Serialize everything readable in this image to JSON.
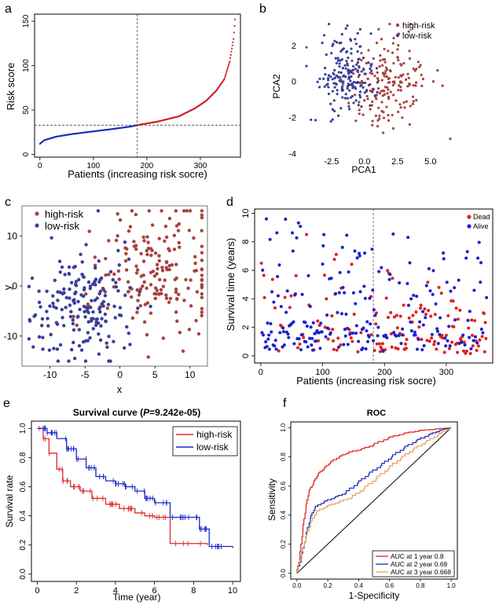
{
  "figure": {
    "panel_labels": [
      "a",
      "b",
      "c",
      "d",
      "e",
      "f"
    ]
  },
  "colors": {
    "high_risk": "#cc2222",
    "low_risk": "#1f2fb8",
    "high_risk_dot": "#a8423e",
    "low_risk_dot": "#3b3f9a",
    "auc3": "#e8a060"
  },
  "chart_data": [
    {
      "id": "a",
      "type": "line",
      "title": "",
      "xlabel": "Patients (increasing risk socre)",
      "ylabel": "Risk score",
      "xlim": [
        -10,
        375
      ],
      "ylim": [
        -3,
        158
      ],
      "xticks": [
        0,
        100,
        200,
        300
      ],
      "yticks": [
        0,
        50,
        100,
        150
      ],
      "cutoff_patient": 182,
      "cutoff_score": 33,
      "n_patients": 365,
      "series": [
        {
          "name": "low-risk",
          "color": "#1f2fb8",
          "points": [
            [
              0,
              12
            ],
            [
              8,
              16
            ],
            [
              30,
              20
            ],
            [
              60,
              23
            ],
            [
              100,
              26
            ],
            [
              140,
              29
            ],
            [
              170,
              31.5
            ],
            [
              182,
              33
            ]
          ]
        },
        {
          "name": "high-risk",
          "color": "#cc2222",
          "points": [
            [
              182,
              33
            ],
            [
              220,
              37
            ],
            [
              260,
              43
            ],
            [
              290,
              52
            ],
            [
              310,
              60
            ],
            [
              330,
              72
            ],
            [
              345,
              85
            ],
            [
              355,
              105
            ],
            [
              362,
              130
            ],
            [
              365,
              152
            ]
          ]
        }
      ]
    },
    {
      "id": "b",
      "type": "scatter",
      "xlabel": "PCA1",
      "ylabel": "PCA2",
      "xlim": [
        -4.7,
        6.8
      ],
      "ylim": [
        -4.2,
        3.4
      ],
      "xticks": [
        -2.5,
        0.0,
        2.5,
        5.0
      ],
      "xtick_labels": [
        "-2.5",
        "0.0",
        "2.5",
        "5.0"
      ],
      "yticks": [
        -4,
        -2,
        0,
        2
      ],
      "legend": [
        "high-risk",
        "low-risk"
      ],
      "legend_position": "top-right",
      "series": [
        {
          "name": "high-risk",
          "n": 182,
          "center": [
            1.8,
            0.0
          ],
          "spread": [
            1.6,
            1.3
          ]
        },
        {
          "name": "low-risk",
          "n": 182,
          "center": [
            -1.3,
            0.4
          ],
          "spread": [
            1.1,
            1.1
          ]
        }
      ]
    },
    {
      "id": "c",
      "type": "scatter",
      "xlabel": "x",
      "ylabel": "y",
      "xlim": [
        -14,
        12.5
      ],
      "ylim": [
        -16,
        16
      ],
      "xticks": [
        -10,
        -5,
        0,
        5,
        10
      ],
      "yticks": [
        -10,
        0,
        10
      ],
      "legend": [
        "high-risk",
        "low-risk"
      ],
      "legend_position": "top-left",
      "series": [
        {
          "name": "high-risk",
          "n": 182,
          "center": [
            5,
            3
          ],
          "spread": [
            4.5,
            6.5
          ]
        },
        {
          "name": "low-risk",
          "n": 182,
          "center": [
            -6,
            -4
          ],
          "spread": [
            3.8,
            5.5
          ]
        }
      ]
    },
    {
      "id": "d",
      "type": "scatter",
      "xlabel": "Patients (increasing risk socre)",
      "ylabel": "Survival time (years)",
      "xlim": [
        -10,
        375
      ],
      "ylim": [
        -0.5,
        10.3
      ],
      "xticks": [
        0,
        100,
        200,
        300
      ],
      "yticks": [
        0,
        2,
        4,
        6,
        8,
        10
      ],
      "cutoff_patient": 182,
      "legend": [
        "Dead",
        "Alive"
      ],
      "legend_position": "top-right",
      "series": [
        {
          "name": "Dead",
          "color": "#e02020"
        },
        {
          "name": "Alive",
          "color": "#1a20d0"
        }
      ]
    },
    {
      "id": "e",
      "type": "line",
      "title_prefix": "Survival curve (",
      "title_p": "P",
      "title_suffix": "=9.242e-05)",
      "xlabel": "Time (year)",
      "ylabel": "Survival rate",
      "xlim": [
        -0.3,
        10.4
      ],
      "ylim": [
        -0.05,
        1.05
      ],
      "xticks": [
        0,
        2,
        4,
        6,
        8,
        10
      ],
      "yticks": [
        0.0,
        0.2,
        0.4,
        0.6,
        0.8,
        1.0
      ],
      "ytick_labels": [
        "0.0",
        "0.2",
        "0.4",
        "0.6",
        "0.8",
        "1.0"
      ],
      "legend": [
        "high-risk",
        "low-risk"
      ],
      "series": [
        {
          "name": "high-risk",
          "color": "#dd2a2a",
          "points": [
            [
              0,
              1.0
            ],
            [
              0.3,
              0.93
            ],
            [
              0.6,
              0.83
            ],
            [
              1.0,
              0.72
            ],
            [
              1.3,
              0.64
            ],
            [
              1.7,
              0.6
            ],
            [
              2.2,
              0.57
            ],
            [
              2.8,
              0.52
            ],
            [
              3.5,
              0.48
            ],
            [
              4.2,
              0.45
            ],
            [
              5.0,
              0.42
            ],
            [
              5.5,
              0.4
            ],
            [
              6.0,
              0.39
            ],
            [
              6.8,
              0.39
            ],
            [
              6.8,
              0.21
            ],
            [
              8.5,
              0.21
            ],
            [
              8.7,
              0.2
            ]
          ]
        },
        {
          "name": "low-risk",
          "color": "#1a2ac8",
          "points": [
            [
              0,
              1.0
            ],
            [
              0.5,
              0.97
            ],
            [
              1.0,
              0.93
            ],
            [
              1.5,
              0.86
            ],
            [
              2.0,
              0.79
            ],
            [
              2.5,
              0.73
            ],
            [
              3.0,
              0.67
            ],
            [
              3.5,
              0.64
            ],
            [
              4.0,
              0.62
            ],
            [
              4.5,
              0.6
            ],
            [
              5.0,
              0.57
            ],
            [
              5.5,
              0.52
            ],
            [
              6.0,
              0.49
            ],
            [
              6.8,
              0.49
            ],
            [
              6.8,
              0.39
            ],
            [
              8.3,
              0.39
            ],
            [
              8.3,
              0.31
            ],
            [
              8.8,
              0.31
            ],
            [
              8.8,
              0.19
            ],
            [
              10.0,
              0.18
            ]
          ]
        }
      ]
    },
    {
      "id": "f",
      "type": "line",
      "title": "ROC",
      "xlabel": "1-Specificity",
      "ylabel": "Sensitivity",
      "xlim": [
        -0.04,
        1.04
      ],
      "ylim": [
        -0.04,
        1.04
      ],
      "xticks": [
        0.0,
        0.2,
        0.4,
        0.6,
        0.8,
        1.0
      ],
      "xtick_labels": [
        "0.0",
        "0.2",
        "0.4",
        "0.6",
        "0.8",
        "1.0"
      ],
      "yticks": [
        0.0,
        0.2,
        0.4,
        0.6,
        0.8,
        1.0
      ],
      "ytick_labels": [
        "0.0",
        "0.2",
        "0.4",
        "0.6",
        "0.8",
        "1.0"
      ],
      "series": [
        {
          "name": "AUC at 1 year 0.8",
          "color": "#dd2222",
          "points": [
            [
              0,
              0
            ],
            [
              0.02,
              0.1
            ],
            [
              0.04,
              0.3
            ],
            [
              0.06,
              0.45
            ],
            [
              0.08,
              0.56
            ],
            [
              0.11,
              0.62
            ],
            [
              0.14,
              0.68
            ],
            [
              0.18,
              0.72
            ],
            [
              0.22,
              0.76
            ],
            [
              0.28,
              0.8
            ],
            [
              0.34,
              0.83
            ],
            [
              0.42,
              0.85
            ],
            [
              0.5,
              0.88
            ],
            [
              0.6,
              0.93
            ],
            [
              0.7,
              0.96
            ],
            [
              0.8,
              0.98
            ],
            [
              0.9,
              0.99
            ],
            [
              1,
              1
            ]
          ]
        },
        {
          "name": "AUC at 2 year 0.69",
          "color": "#1f2aba",
          "points": [
            [
              0,
              0
            ],
            [
              0.03,
              0.1
            ],
            [
              0.06,
              0.25
            ],
            [
              0.09,
              0.38
            ],
            [
              0.12,
              0.45
            ],
            [
              0.18,
              0.49
            ],
            [
              0.25,
              0.52
            ],
            [
              0.32,
              0.55
            ],
            [
              0.4,
              0.62
            ],
            [
              0.47,
              0.68
            ],
            [
              0.55,
              0.74
            ],
            [
              0.62,
              0.8
            ],
            [
              0.7,
              0.86
            ],
            [
              0.78,
              0.91
            ],
            [
              0.86,
              0.95
            ],
            [
              0.93,
              0.98
            ],
            [
              1,
              1
            ]
          ]
        },
        {
          "name": "AUC at 3 year 0.668",
          "color": "#e8a060",
          "points": [
            [
              0,
              0
            ],
            [
              0.03,
              0.12
            ],
            [
              0.06,
              0.24
            ],
            [
              0.09,
              0.34
            ],
            [
              0.13,
              0.42
            ],
            [
              0.2,
              0.46
            ],
            [
              0.28,
              0.49
            ],
            [
              0.36,
              0.52
            ],
            [
              0.44,
              0.58
            ],
            [
              0.52,
              0.65
            ],
            [
              0.6,
              0.72
            ],
            [
              0.68,
              0.79
            ],
            [
              0.76,
              0.85
            ],
            [
              0.84,
              0.9
            ],
            [
              0.92,
              0.95
            ],
            [
              1,
              1
            ]
          ]
        }
      ]
    }
  ]
}
